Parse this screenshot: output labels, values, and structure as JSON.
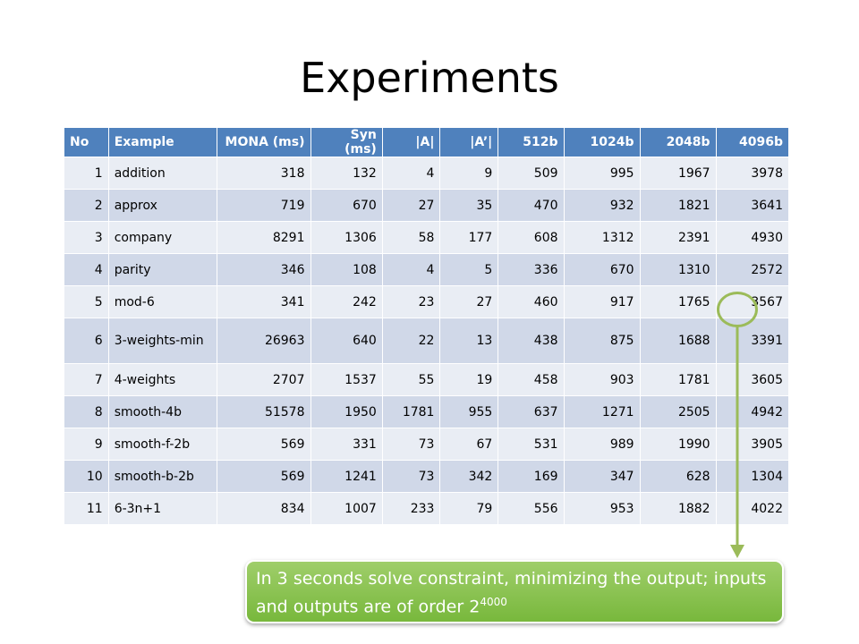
{
  "slide": {
    "title": "Experiments"
  },
  "table": {
    "headers": [
      "No",
      "Example",
      "MONA (ms)",
      "Syn (ms)",
      "|A|",
      "|A’|",
      "512b",
      "1024b",
      "2048b",
      "4096b"
    ],
    "rows": [
      [
        "1",
        "addition",
        "318",
        "132",
        "4",
        "9",
        "509",
        "995",
        "1967",
        "3978"
      ],
      [
        "2",
        "approx",
        "719",
        "670",
        "27",
        "35",
        "470",
        "932",
        "1821",
        "3641"
      ],
      [
        "3",
        "company",
        "8291",
        "1306",
        "58",
        "177",
        "608",
        "1312",
        "2391",
        "4930"
      ],
      [
        "4",
        "parity",
        "346",
        "108",
        "4",
        "5",
        "336",
        "670",
        "1310",
        "2572"
      ],
      [
        "5",
        "mod-6",
        "341",
        "242",
        "23",
        "27",
        "460",
        "917",
        "1765",
        "3567"
      ],
      [
        "6",
        "3-weights-min",
        "26963",
        "640",
        "22",
        "13",
        "438",
        "875",
        "1688",
        "3391"
      ],
      [
        "7",
        "4-weights",
        "2707",
        "1537",
        "55",
        "19",
        "458",
        "903",
        "1781",
        "3605"
      ],
      [
        "8",
        "smooth-4b",
        "51578",
        "1950",
        "1781",
        "955",
        "637",
        "1271",
        "2505",
        "4942"
      ],
      [
        "9",
        "smooth-f-2b",
        "569",
        "331",
        "73",
        "67",
        "531",
        "989",
        "1990",
        "3905"
      ],
      [
        "10",
        "smooth-b-2b",
        "569",
        "1241",
        "73",
        "342",
        "169",
        "347",
        "628",
        "1304"
      ],
      [
        "11",
        "6-3n+1",
        "834",
        "1007",
        "233",
        "79",
        "556",
        "953",
        "1882",
        "4022"
      ]
    ]
  },
  "callout": {
    "text": "In 3 seconds solve constraint, minimizing the output; inputs and outputs are of order 2",
    "exponent": "4000"
  },
  "colors": {
    "header": "#4f81bd",
    "row_light": "#e9edf4",
    "row_dark": "#d0d8e8",
    "accent_green": "#9bbb59"
  }
}
